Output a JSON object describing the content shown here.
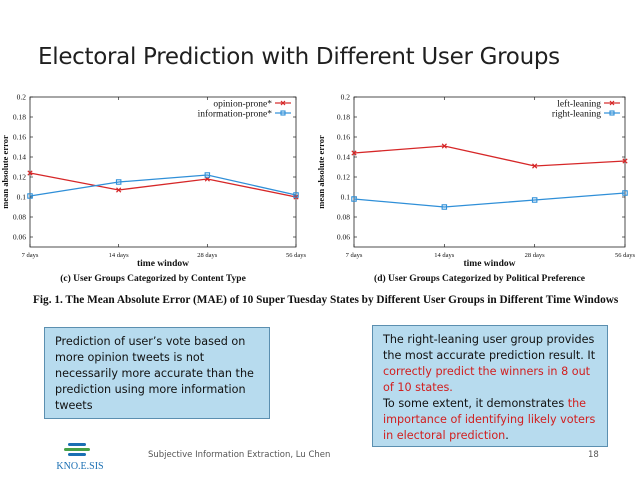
{
  "slide": {
    "title": "Electoral Prediction with Different User Groups",
    "figure_caption": "Fig. 1.   The Mean Absolute Error (MAE) of 10 Super Tuesday States by Different User Groups in Different Time Windows",
    "note_left": "Prediction of user’s vote based on more opinion tweets is not necessarily more accurate than the prediction using more information tweets",
    "note_right": {
      "part1": "The right-leaning user group provides the most accurate prediction result. It ",
      "highlight1": "correctly predict the winners in 8 out of 10 states.",
      "part2": "To some extent, it demonstrates ",
      "highlight2": "the importance of identifying likely voters in electoral prediction",
      "part3": "."
    },
    "footer": "Subjective Information Extraction, Lu Chen",
    "page_number": "18",
    "logo_text": "KNO.E.SIS"
  },
  "colors": {
    "red": "#d62728",
    "blue": "#2f8fd8",
    "highlight": "#d11e1e",
    "note_bg": "#b7dbee"
  },
  "chart_data": [
    {
      "type": "line",
      "caption": "(c) User Groups Categorized by Content Type",
      "xlabel": "time window",
      "ylabel": "mean absolute error",
      "categories": [
        "7 days",
        "14 days",
        "28 days",
        "56 days"
      ],
      "ylim": [
        0.05,
        0.2
      ],
      "yticks": [
        0.06,
        0.08,
        0.1,
        0.12,
        0.14,
        0.16,
        0.18,
        0.2
      ],
      "ytick_labels": [
        "0.06",
        "0.08",
        "0.1",
        "0.12",
        "0.14",
        "0.16",
        "0.18",
        "0.2"
      ],
      "legend_position": "top-right",
      "grid": false,
      "series": [
        {
          "name": "opinion-prone*",
          "color": "#d62728",
          "marker": "x",
          "values": [
            0.124,
            0.107,
            0.118,
            0.1
          ]
        },
        {
          "name": "information-prone*",
          "color": "#2f8fd8",
          "marker": "square",
          "values": [
            0.101,
            0.115,
            0.122,
            0.102
          ]
        }
      ]
    },
    {
      "type": "line",
      "caption": "(d) User Groups Categorized by Political Preference",
      "xlabel": "time window",
      "ylabel": "mean absolute error",
      "categories": [
        "7 days",
        "14 days",
        "28 days",
        "56 days"
      ],
      "ylim": [
        0.05,
        0.2
      ],
      "yticks": [
        0.06,
        0.08,
        0.1,
        0.12,
        0.14,
        0.16,
        0.18,
        0.2
      ],
      "ytick_labels": [
        "0.06",
        "0.08",
        "0.1",
        "0.12",
        "0.14",
        "0.16",
        "0.18",
        "0.2"
      ],
      "legend_position": "top-right",
      "grid": false,
      "series": [
        {
          "name": "left-leaning",
          "color": "#d62728",
          "marker": "x",
          "values": [
            0.144,
            0.151,
            0.131,
            0.136
          ]
        },
        {
          "name": "right-leaning",
          "color": "#2f8fd8",
          "marker": "square",
          "values": [
            0.098,
            0.09,
            0.097,
            0.104
          ]
        }
      ]
    }
  ]
}
